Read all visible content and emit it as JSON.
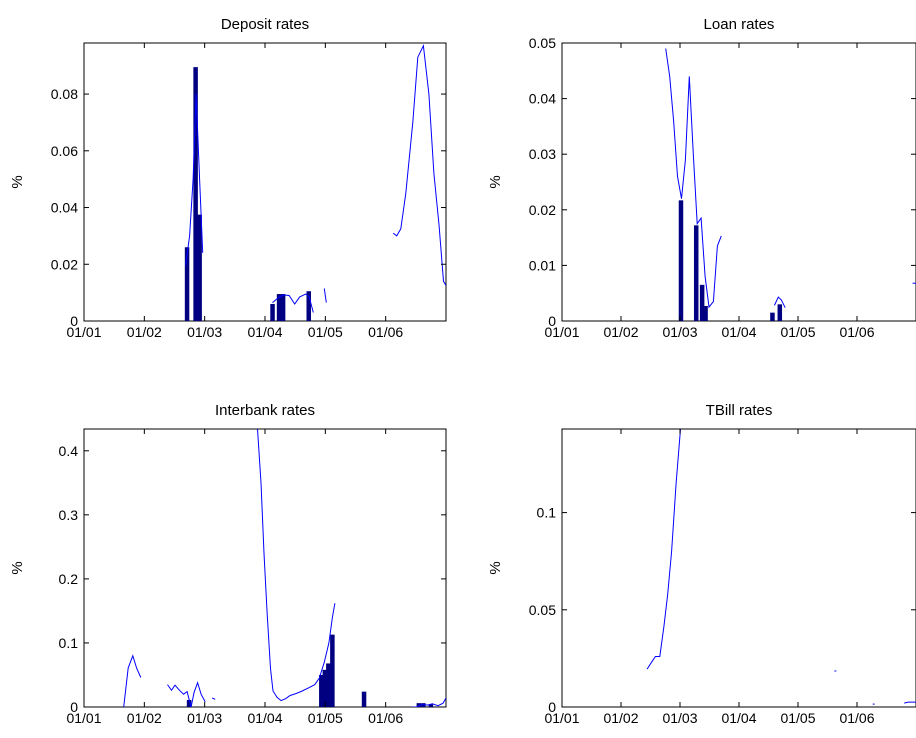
{
  "chart_data": [
    {
      "type": "bar",
      "title": "Deposit rates",
      "ylabel": "%",
      "xlabel": "",
      "x_ticks": [
        "01/01",
        "01/02",
        "01/03",
        "01/04",
        "01/05",
        "01/06"
      ],
      "y_ticks": [
        "0",
        "0.02",
        "0.04",
        "0.06",
        "0.08"
      ],
      "xlim": [
        0,
        72
      ],
      "ylim": [
        0,
        0.098
      ],
      "grid": false,
      "bar_series": [
        {
          "x": 20.5,
          "y": 0.026
        },
        {
          "x": 22.2,
          "y": 0.0895
        },
        {
          "x": 23.0,
          "y": 0.0375
        },
        {
          "x": 37.5,
          "y": 0.006
        },
        {
          "x": 38.8,
          "y": 0.0095
        },
        {
          "x": 39.6,
          "y": 0.0095
        },
        {
          "x": 44.7,
          "y": 0.0105
        }
      ],
      "line_series": [
        {
          "x": [
            20.2,
            21.0,
            21.7,
            22.3,
            23.0,
            23.6
          ],
          "y": [
            0.0195,
            0.03,
            0.05,
            0.08,
            0.05,
            0.024
          ]
        },
        {
          "x": [
            37.5,
            38.5,
            39.6,
            40.8,
            41.9,
            42.9,
            44.1,
            44.8,
            45.6
          ],
          "y": [
            0.0065,
            0.008,
            0.0092,
            0.009,
            0.006,
            0.0085,
            0.0095,
            0.0085,
            0.003
          ]
        },
        {
          "x": [
            47.8,
            48.2
          ],
          "y": [
            0.0115,
            0.0065
          ]
        },
        {
          "x": [
            61.5,
            62.2,
            63.0,
            64.0,
            65.4,
            66.4,
            67.5,
            68.6,
            69.6,
            70.6,
            71.5,
            72.0
          ],
          "y": [
            0.031,
            0.03,
            0.0325,
            0.045,
            0.07,
            0.093,
            0.097,
            0.08,
            0.052,
            0.034,
            0.014,
            0.0125
          ]
        }
      ]
    },
    {
      "type": "bar",
      "title": "Loan rates",
      "ylabel": "%",
      "xlabel": "",
      "x_ticks": [
        "01/01",
        "01/02",
        "01/03",
        "01/04",
        "01/05",
        "01/06"
      ],
      "y_ticks": [
        "0",
        "0.01",
        "0.02",
        "0.03",
        "0.04",
        "0.05"
      ],
      "xlim": [
        0,
        72
      ],
      "ylim": [
        0,
        0.05
      ],
      "grid": false,
      "bar_series": [
        {
          "x": 24.2,
          "y": 0.0217
        },
        {
          "x": 27.3,
          "y": 0.0172
        },
        {
          "x": 28.5,
          "y": 0.0065
        },
        {
          "x": 29.2,
          "y": 0.0027
        },
        {
          "x": 42.8,
          "y": 0.0015
        },
        {
          "x": 44.3,
          "y": 0.003
        }
      ],
      "line_series": [
        {
          "x": [
            21.1,
            21.9,
            22.7,
            23.5,
            24.3,
            25.1,
            25.9,
            26.7,
            27.5,
            28.3,
            29.1,
            29.9,
            30.8,
            31.6,
            32.4
          ],
          "y": [
            0.049,
            0.044,
            0.036,
            0.026,
            0.022,
            0.029,
            0.044,
            0.03,
            0.0175,
            0.0185,
            0.008,
            0.0025,
            0.0035,
            0.0135,
            0.0153
          ]
        },
        {
          "x": [
            43.2,
            44.0,
            44.6,
            45.4
          ],
          "y": [
            0.0028,
            0.0043,
            0.0038,
            0.0024
          ]
        },
        {
          "x": [
            71.3,
            72.0
          ],
          "y": [
            0.0068,
            0.0068
          ]
        }
      ]
    },
    {
      "type": "bar",
      "title": "Interbank rates",
      "ylabel": "%",
      "xlabel": "",
      "x_ticks": [
        "01/01",
        "01/02",
        "01/03",
        "01/04",
        "01/05",
        "01/06"
      ],
      "y_ticks": [
        "0",
        "0.1",
        "0.2",
        "0.3",
        "0.4"
      ],
      "xlim": [
        0,
        72
      ],
      "ylim": [
        0,
        0.434
      ],
      "grid": false,
      "bar_series": [
        {
          "x": 20.9,
          "y": 0.011
        },
        {
          "x": 47.2,
          "y": 0.05
        },
        {
          "x": 47.9,
          "y": 0.058
        },
        {
          "x": 48.6,
          "y": 0.068
        },
        {
          "x": 49.4,
          "y": 0.113
        },
        {
          "x": 55.7,
          "y": 0.024
        },
        {
          "x": 66.6,
          "y": 0.006
        },
        {
          "x": 67.5,
          "y": 0.006
        },
        {
          "x": 69.0,
          "y": 0.004
        }
      ],
      "line_series": [
        {
          "x": [
            7.9,
            8.8,
            9.7,
            10.5,
            11.3
          ],
          "y": [
            0.0,
            0.061,
            0.08,
            0.06,
            0.046
          ]
        },
        {
          "x": [
            16.6,
            17.4,
            18.1,
            19.0,
            19.8,
            20.5,
            21.3,
            21.9,
            22.6,
            23.3,
            24.1
          ],
          "y": [
            0.035,
            0.026,
            0.034,
            0.026,
            0.02,
            0.024,
            0.0,
            0.023,
            0.038,
            0.02,
            0.008
          ]
        },
        {
          "x": [
            25.5,
            26.1
          ],
          "y": [
            0.014,
            0.012
          ]
        },
        {
          "x": [
            34.5,
            35.2,
            35.8,
            36.4,
            37.1,
            37.6,
            38.4,
            39.2,
            40.1,
            41.0,
            42.2,
            43.4,
            44.7,
            45.9,
            46.8,
            47.8,
            48.7,
            49.4,
            49.9
          ],
          "y": [
            0.434,
            0.35,
            0.24,
            0.15,
            0.06,
            0.025,
            0.015,
            0.01,
            0.013,
            0.018,
            0.021,
            0.025,
            0.03,
            0.035,
            0.045,
            0.07,
            0.1,
            0.14,
            0.162
          ]
        },
        {
          "x": [
            65.3,
            66.2,
            67.2,
            68.3,
            69.3,
            70.4,
            71.4,
            72.0
          ],
          "y": [
            0.0,
            0.0,
            0.004,
            0.003,
            0.005,
            0.002,
            0.006,
            0.014
          ]
        }
      ]
    },
    {
      "type": "line",
      "title": "TBill rates",
      "ylabel": "%",
      "xlabel": "",
      "x_ticks": [
        "01/01",
        "01/02",
        "01/03",
        "01/04",
        "01/05",
        "01/06"
      ],
      "y_ticks": [
        "0",
        "0.05",
        "0.1"
      ],
      "xlim": [
        0,
        72
      ],
      "ylim": [
        0,
        0.143
      ],
      "grid": false,
      "bar_series": [],
      "line_series": [
        {
          "x": [
            17.3,
            18.2,
            19.0,
            19.9,
            20.7,
            21.5,
            22.3,
            23.2,
            24.1
          ],
          "y": [
            0.0195,
            0.023,
            0.026,
            0.026,
            0.041,
            0.058,
            0.08,
            0.115,
            0.143
          ]
        },
        {
          "x": [
            55.4,
            55.8
          ],
          "y": [
            0.0185,
            0.0185
          ]
        },
        {
          "x": [
            63.2,
            63.6
          ],
          "y": [
            0.0015,
            0.0015
          ]
        },
        {
          "x": [
            69.6,
            70.4,
            71.4,
            72.0
          ],
          "y": [
            0.002,
            0.0025,
            0.0025,
            0.0025
          ]
        }
      ]
    }
  ]
}
